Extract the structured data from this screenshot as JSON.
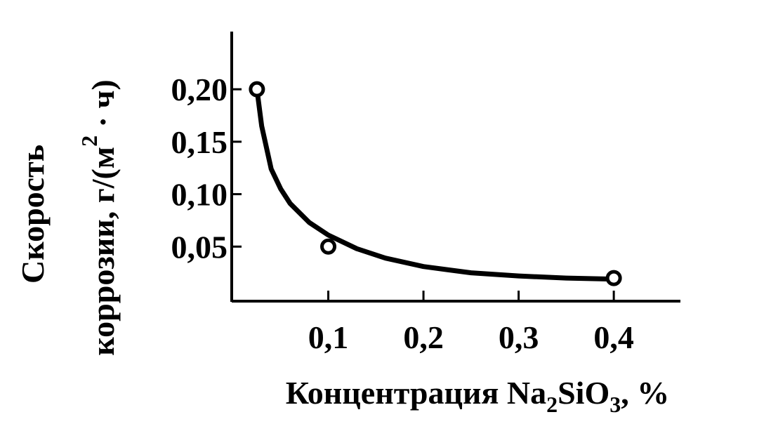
{
  "chart_data": {
    "type": "line",
    "ylabel": {
      "line1": "Скорость",
      "line2": "коррозии, г/(м",
      "sup": "2",
      "end": " · ч)"
    },
    "xlabel": {
      "start": "Концентрация Na",
      "sub1": "2",
      "mid": "SiO",
      "sub2": "3",
      "end": ", %"
    },
    "xlim": [
      0,
      0.47
    ],
    "ylim": [
      0,
      0.255
    ],
    "xticks": [
      {
        "value": 0.1,
        "label": "0,1"
      },
      {
        "value": 0.2,
        "label": "0,2"
      },
      {
        "value": 0.3,
        "label": "0,3"
      },
      {
        "value": 0.4,
        "label": "0,4"
      }
    ],
    "yticks": [
      {
        "value": 0.05,
        "label": "0,05"
      },
      {
        "value": 0.1,
        "label": "0,10"
      },
      {
        "value": 0.15,
        "label": "0,15"
      },
      {
        "value": 0.2,
        "label": "0,20"
      }
    ],
    "series": [
      {
        "style": "line",
        "color": "#000000",
        "x": [
          0.025,
          0.03,
          0.04,
          0.05,
          0.06,
          0.08,
          0.1,
          0.13,
          0.16,
          0.2,
          0.25,
          0.3,
          0.35,
          0.4
        ],
        "values": [
          0.2,
          0.165,
          0.124,
          0.105,
          0.091,
          0.073,
          0.061,
          0.048,
          0.039,
          0.031,
          0.025,
          0.022,
          0.02,
          0.019
        ]
      },
      {
        "style": "markers",
        "color": "#000000",
        "x": [
          0.025,
          0.1,
          0.4
        ],
        "values": [
          0.2,
          0.05,
          0.02
        ]
      }
    ]
  }
}
